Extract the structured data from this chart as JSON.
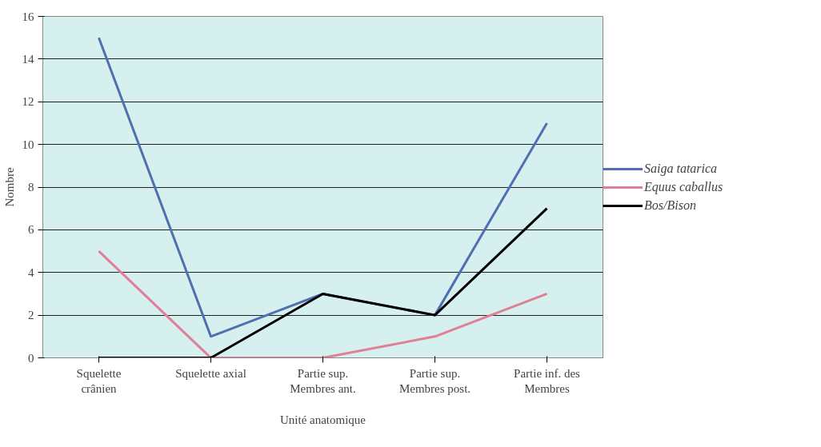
{
  "chart_data": {
    "type": "line",
    "categories": [
      "Squelette crânien",
      "Squelette axial",
      "Partie sup. Membres ant.",
      "Partie sup. Membres post.",
      "Partie inf. des Membres"
    ],
    "series": [
      {
        "name": "Saiga tatarica",
        "color": "#4f6fb0",
        "values": [
          15,
          1,
          3,
          2,
          11
        ]
      },
      {
        "name": "Equus caballus",
        "color": "#e07f96",
        "values": [
          5,
          0,
          0,
          1,
          3
        ]
      },
      {
        "name": "Bos/Bison",
        "color": "#000000",
        "values": [
          0,
          0,
          3,
          2,
          7
        ]
      }
    ],
    "xlabel": "Unité anatomique",
    "ylabel": "Nombre",
    "ylim": [
      0,
      16
    ],
    "yticks": [
      0,
      2,
      4,
      6,
      8,
      10,
      12,
      14,
      16
    ],
    "grid": "y",
    "legend": "right",
    "marker": "none",
    "line_style": "solid"
  }
}
